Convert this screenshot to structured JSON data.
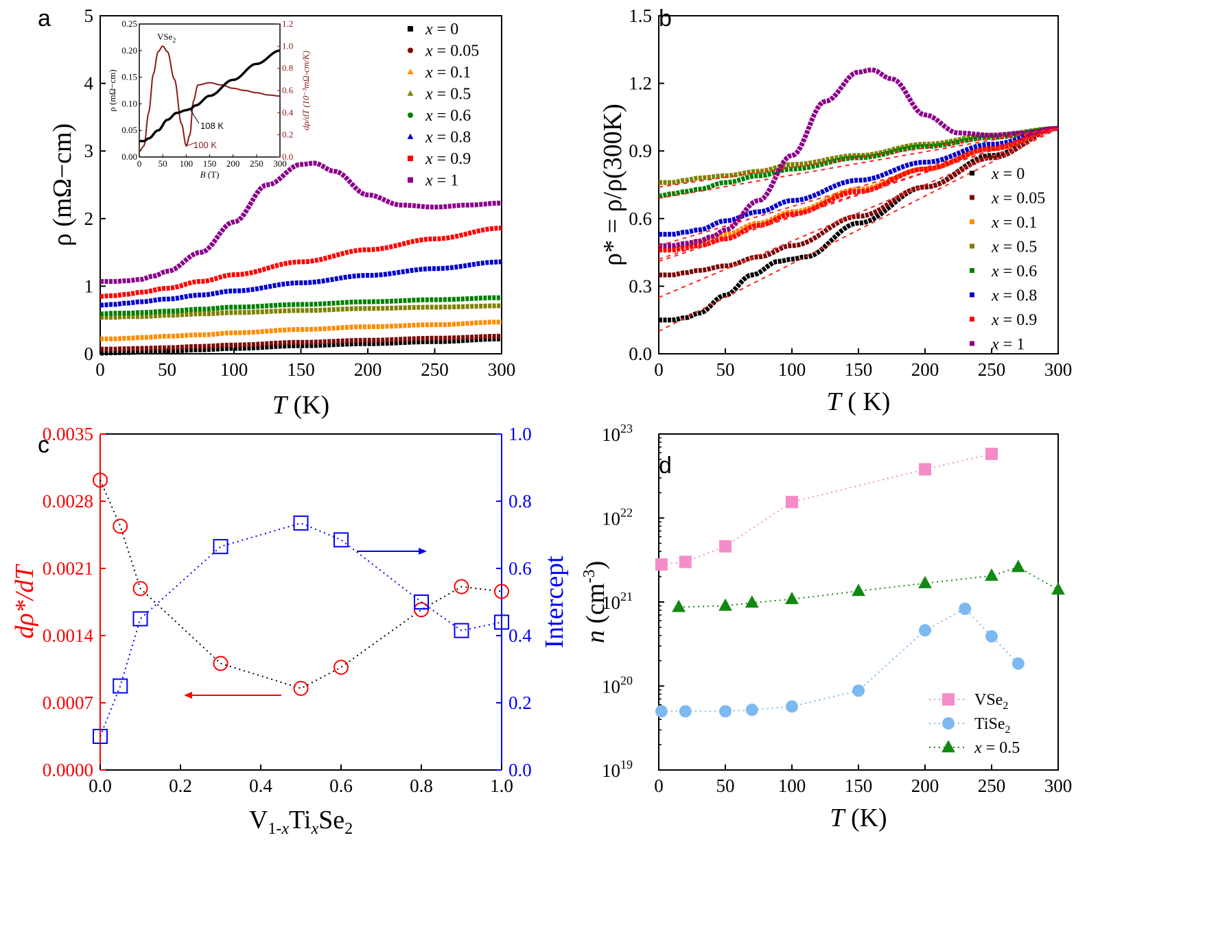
{
  "panels": {
    "a": "a",
    "b": "b",
    "c": "c",
    "d": "d"
  },
  "chart_data": [
    {
      "type": "line",
      "panel": "a",
      "xlabel_italic": "T",
      "xlabel_unit": " (K)",
      "ylabel": "ρ (mΩ−cm)",
      "xlim": [
        0,
        300
      ],
      "ylim": [
        0,
        5
      ],
      "xticks": [
        "0",
        "50",
        "100",
        "150",
        "200",
        "250",
        "300"
      ],
      "yticks": [
        "0",
        "1",
        "2",
        "3",
        "4",
        "5"
      ],
      "legend_position": "top-right",
      "series": [
        {
          "name": "x = 0",
          "color": "#000000",
          "marker": "square",
          "x": [
            0,
            10,
            20,
            30,
            50,
            75,
            100,
            150,
            200,
            250,
            300
          ],
          "y": [
            0.01,
            0.015,
            0.02,
            0.025,
            0.04,
            0.06,
            0.08,
            0.12,
            0.15,
            0.18,
            0.22
          ]
        },
        {
          "name": "x = 0.05",
          "color": "#7b0a0a",
          "marker": "circle",
          "x": [
            0,
            10,
            20,
            30,
            50,
            75,
            100,
            150,
            200,
            250,
            300
          ],
          "y": [
            0.07,
            0.07,
            0.075,
            0.08,
            0.09,
            0.11,
            0.13,
            0.17,
            0.2,
            0.23,
            0.26
          ]
        },
        {
          "name": "x = 0.1",
          "color": "#ff8c00",
          "marker": "triangle",
          "x": [
            0,
            10,
            20,
            30,
            50,
            75,
            100,
            150,
            200,
            250,
            300
          ],
          "y": [
            0.22,
            0.22,
            0.23,
            0.24,
            0.26,
            0.28,
            0.31,
            0.36,
            0.4,
            0.43,
            0.47
          ]
        },
        {
          "name": "x = 0.5",
          "color": "#808000",
          "marker": "triangle",
          "x": [
            0,
            10,
            20,
            30,
            50,
            75,
            100,
            150,
            200,
            250,
            300
          ],
          "y": [
            0.54,
            0.54,
            0.55,
            0.55,
            0.57,
            0.59,
            0.61,
            0.64,
            0.67,
            0.69,
            0.71
          ]
        },
        {
          "name": "x = 0.6",
          "color": "#008000",
          "marker": "circle",
          "x": [
            0,
            10,
            20,
            30,
            50,
            75,
            100,
            150,
            200,
            250,
            300
          ],
          "y": [
            0.59,
            0.6,
            0.6,
            0.61,
            0.63,
            0.66,
            0.69,
            0.73,
            0.77,
            0.8,
            0.83
          ]
        },
        {
          "name": "x = 0.8",
          "color": "#0000cd",
          "marker": "triangle",
          "x": [
            0,
            10,
            20,
            30,
            50,
            75,
            100,
            150,
            200,
            250,
            300
          ],
          "y": [
            0.72,
            0.73,
            0.75,
            0.77,
            0.81,
            0.87,
            0.93,
            1.05,
            1.16,
            1.26,
            1.36
          ]
        },
        {
          "name": "x = 0.9",
          "color": "#ff0000",
          "marker": "square",
          "x": [
            0,
            10,
            20,
            30,
            50,
            75,
            100,
            150,
            200,
            250,
            300
          ],
          "y": [
            0.85,
            0.86,
            0.88,
            0.91,
            0.97,
            1.07,
            1.17,
            1.36,
            1.54,
            1.7,
            1.86
          ]
        },
        {
          "name": "x = 1",
          "color": "#8b008b",
          "marker": "square",
          "x": [
            0,
            10,
            20,
            30,
            40,
            50,
            75,
            100,
            125,
            150,
            160,
            175,
            200,
            225,
            250,
            275,
            300
          ],
          "y": [
            1.07,
            1.07,
            1.08,
            1.1,
            1.15,
            1.22,
            1.5,
            1.95,
            2.5,
            2.8,
            2.82,
            2.7,
            2.35,
            2.2,
            2.17,
            2.2,
            2.23
          ]
        }
      ],
      "inset": {
        "label": "VSe",
        "label_sub": "2",
        "xlabel_italic": "B",
        "xlabel_unit": " (T)",
        "ylabel_left": "ρ (mΩ−cm)",
        "ylabel_right": "dρ/dT (10⁻³mΩ-cm/K)",
        "xlim": [
          0,
          300
        ],
        "ylim_left": [
          0,
          0.25
        ],
        "ylim_right": [
          0,
          1.2
        ],
        "xticks": [
          "0",
          "50",
          "100",
          "150",
          "200",
          "250",
          "300"
        ],
        "yticks_left": [
          "0.00",
          "0.05",
          "0.10",
          "0.15",
          "0.20",
          "0.25"
        ],
        "yticks_right": [
          "0.0",
          "0.2",
          "0.4",
          "0.6",
          "0.8",
          "1.0",
          "1.2"
        ],
        "annotations": [
          "108 K",
          "100 K"
        ],
        "rho": {
          "x": [
            0,
            10,
            20,
            40,
            60,
            80,
            100,
            108,
            120,
            150,
            200,
            250,
            300
          ],
          "y": [
            0.03,
            0.03,
            0.035,
            0.05,
            0.07,
            0.083,
            0.088,
            0.09,
            0.097,
            0.115,
            0.145,
            0.175,
            0.2
          ]
        },
        "drho": {
          "x": [
            0,
            10,
            20,
            30,
            40,
            50,
            60,
            75,
            90,
            100,
            108,
            115,
            125,
            150,
            175,
            200,
            225,
            250,
            275,
            300
          ],
          "y": [
            0.05,
            0.1,
            0.4,
            0.75,
            0.95,
            1.0,
            0.95,
            0.7,
            0.3,
            0.1,
            0.2,
            0.5,
            0.65,
            0.67,
            0.65,
            0.62,
            0.6,
            0.58,
            0.56,
            0.55
          ]
        }
      }
    },
    {
      "type": "line",
      "panel": "b",
      "xlabel_italic": "T",
      "xlabel_unit": " ( K)",
      "ylabel": "ρ* = ρ/ρ(300K)",
      "xlim": [
        0,
        300
      ],
      "ylim": [
        0,
        1.5
      ],
      "xticks": [
        "0",
        "50",
        "100",
        "150",
        "200",
        "250",
        "300"
      ],
      "yticks": [
        "0.0",
        "0.3",
        "0.6",
        "0.9",
        "1.2",
        "1.5"
      ],
      "legend_position": "bottom-right",
      "series": [
        {
          "name": "x = 0",
          "color": "#000000",
          "x": [
            0,
            10,
            20,
            30,
            50,
            70,
            90,
            100,
            110,
            150,
            200,
            250,
            300
          ],
          "y": [
            0.15,
            0.15,
            0.16,
            0.18,
            0.26,
            0.35,
            0.41,
            0.42,
            0.43,
            0.58,
            0.74,
            0.88,
            1.0
          ]
        },
        {
          "name": "x = 0.05",
          "color": "#7b0a0a",
          "x": [
            0,
            10,
            20,
            30,
            50,
            75,
            100,
            150,
            200,
            250,
            300
          ],
          "y": [
            0.35,
            0.35,
            0.36,
            0.37,
            0.39,
            0.43,
            0.48,
            0.61,
            0.74,
            0.87,
            1.0
          ]
        },
        {
          "name": "x = 0.1",
          "color": "#ff8c00",
          "x": [
            0,
            10,
            20,
            30,
            50,
            75,
            100,
            150,
            200,
            250,
            300
          ],
          "y": [
            0.47,
            0.47,
            0.48,
            0.5,
            0.53,
            0.58,
            0.63,
            0.73,
            0.82,
            0.91,
            1.0
          ]
        },
        {
          "name": "x = 0.5",
          "color": "#808000",
          "x": [
            0,
            10,
            20,
            30,
            50,
            75,
            100,
            150,
            200,
            250,
            300
          ],
          "y": [
            0.76,
            0.76,
            0.77,
            0.78,
            0.79,
            0.81,
            0.84,
            0.88,
            0.93,
            0.97,
            1.0
          ]
        },
        {
          "name": "x = 0.6",
          "color": "#008000",
          "x": [
            0,
            10,
            20,
            30,
            50,
            75,
            100,
            150,
            200,
            250,
            300
          ],
          "y": [
            0.7,
            0.71,
            0.72,
            0.73,
            0.76,
            0.79,
            0.82,
            0.87,
            0.92,
            0.96,
            1.0
          ]
        },
        {
          "name": "x = 0.8",
          "color": "#0000cd",
          "x": [
            0,
            10,
            20,
            30,
            50,
            75,
            100,
            150,
            200,
            250,
            300
          ],
          "y": [
            0.53,
            0.53,
            0.54,
            0.55,
            0.59,
            0.63,
            0.68,
            0.77,
            0.85,
            0.93,
            1.0
          ]
        },
        {
          "name": "x = 0.9",
          "color": "#ff0000",
          "x": [
            0,
            10,
            20,
            30,
            50,
            75,
            100,
            150,
            200,
            250,
            300
          ],
          "y": [
            0.46,
            0.46,
            0.47,
            0.48,
            0.51,
            0.57,
            0.62,
            0.72,
            0.82,
            0.91,
            1.0
          ]
        },
        {
          "name": "x = 1",
          "color": "#8b008b",
          "x": [
            0,
            10,
            20,
            30,
            40,
            50,
            75,
            100,
            125,
            150,
            160,
            175,
            200,
            225,
            250,
            275,
            300
          ],
          "y": [
            0.48,
            0.48,
            0.49,
            0.5,
            0.52,
            0.55,
            0.68,
            0.88,
            1.12,
            1.25,
            1.26,
            1.22,
            1.06,
            0.98,
            0.97,
            0.98,
            1.0
          ]
        }
      ],
      "fits": [
        {
          "x": [
            0,
            300
          ],
          "y": [
            0.1,
            1.0
          ]
        },
        {
          "x": [
            0,
            300
          ],
          "y": [
            0.25,
            1.0
          ]
        },
        {
          "x": [
            0,
            300
          ],
          "y": [
            0.41,
            1.0
          ]
        },
        {
          "x": [
            0,
            300
          ],
          "y": [
            0.74,
            1.0
          ]
        },
        {
          "x": [
            0,
            300
          ],
          "y": [
            0.69,
            1.0
          ]
        },
        {
          "x": [
            0,
            300
          ],
          "y": [
            0.48,
            1.0
          ]
        },
        {
          "x": [
            0,
            300
          ],
          "y": [
            0.42,
            1.0
          ]
        }
      ]
    },
    {
      "type": "scatter",
      "panel": "c",
      "xlabel_main": "V",
      "xlabel_sub1": "1-",
      "xlabel_sub1_italic": "x",
      "xlabel_mid": "Ti",
      "xlabel_sub2_italic": "x",
      "xlabel_end": "Se",
      "xlabel_sub3": "2",
      "ylabel_left": "dρ*/dT",
      "ylabel_right": "Intercept",
      "xlim": [
        0,
        1.0
      ],
      "ylim_left": [
        0,
        0.0035
      ],
      "ylim_right": [
        0,
        1.0
      ],
      "xticks": [
        "0.0",
        "0.2",
        "0.4",
        "0.6",
        "0.8",
        "1.0"
      ],
      "yticks_left": [
        "0.0000",
        "0.0007",
        "0.0014",
        "0.0021",
        "0.0028",
        "0.0035"
      ],
      "yticks_right": [
        "0.0",
        "0.2",
        "0.4",
        "0.6",
        "0.8",
        "1.0"
      ],
      "series": [
        {
          "name": "dρ*/dT",
          "color": "#ff0000",
          "marker": "open-circle",
          "axis": "left",
          "x": [
            0,
            0.05,
            0.1,
            0.3,
            0.5,
            0.6,
            0.8,
            0.9,
            1.0
          ],
          "y": [
            0.00302,
            0.00254,
            0.00189,
            0.00111,
            0.00085,
            0.00107,
            0.00167,
            0.00191,
            0.00186
          ]
        },
        {
          "name": "Intercept",
          "color": "#0000ff",
          "marker": "open-square",
          "axis": "right",
          "x": [
            0,
            0.05,
            0.1,
            0.3,
            0.5,
            0.6,
            0.8,
            0.9,
            1.0
          ],
          "y": [
            0.1,
            0.25,
            0.45,
            0.665,
            0.735,
            0.685,
            0.5,
            0.415,
            0.44
          ]
        }
      ]
    },
    {
      "type": "scatter",
      "panel": "d",
      "xlabel_italic": "T",
      "xlabel_unit": " (K)",
      "ylabel_italic": "n",
      "ylabel_unit": " (cm",
      "ylabel_exp": "-3",
      "ylabel_close": ")",
      "xlim": [
        0,
        300
      ],
      "ylim_log10": [
        19,
        23
      ],
      "yscale": "log",
      "xticks": [
        "0",
        "50",
        "100",
        "150",
        "200",
        "250",
        "300"
      ],
      "ytick_base": "10",
      "ytick_exps": [
        "19",
        "20",
        "21",
        "22",
        "23"
      ],
      "legend_position": "bottom-right",
      "series": [
        {
          "name": "VSe",
          "name_sub": "2",
          "color": "#f48cc8",
          "marker": "square",
          "x": [
            2,
            20,
            50,
            100,
            200,
            250
          ],
          "y": [
            2.8e+21,
            3e+21,
            4.6e+21,
            1.55e+22,
            3.8e+22,
            5.8e+22
          ]
        },
        {
          "name": "TiSe",
          "name_sub": "2",
          "color": "#7cb9f0",
          "marker": "circle",
          "x": [
            2,
            20,
            50,
            70,
            100,
            150,
            200,
            230,
            250,
            270
          ],
          "y": [
            5e+19,
            5e+19,
            5e+19,
            5.2e+19,
            5.7e+19,
            8.8e+19,
            4.6e+20,
            8.3e+20,
            3.9e+20,
            1.85e+20
          ]
        },
        {
          "name_italic": "x",
          "name": " = 0.5",
          "color": "#118811",
          "marker": "triangle",
          "x": [
            15,
            50,
            70,
            100,
            150,
            200,
            250,
            270,
            300
          ],
          "y": [
            8.7e+20,
            9e+20,
            9.8e+20,
            1.08e+21,
            1.35e+21,
            1.67e+21,
            2.05e+21,
            2.6e+21,
            1.4e+21
          ]
        }
      ]
    }
  ]
}
